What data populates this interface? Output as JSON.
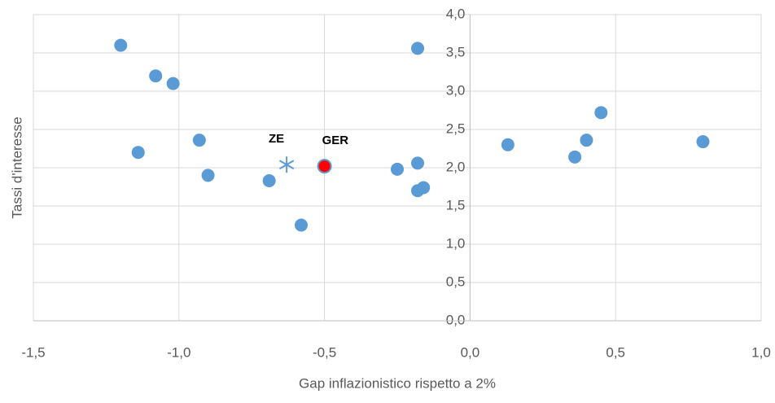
{
  "chart_data": {
    "type": "scatter",
    "xlabel": "Gap inflazionistico rispetto a 2%",
    "ylabel": "Tassi d'interesse",
    "xlim": [
      -1.5,
      1.0
    ],
    "xticks": [
      {
        "value": -1.5,
        "label": "-1,5"
      },
      {
        "value": -1.0,
        "label": "-1,0"
      },
      {
        "value": -0.5,
        "label": "-0,5"
      },
      {
        "value": 0,
        "label": "0,0"
      },
      {
        "value": 0.5,
        "label": "0,5"
      },
      {
        "value": 1.0,
        "label": "1,0"
      }
    ],
    "ylim": [
      0,
      4.0
    ],
    "yticks": [
      {
        "value": 0,
        "label": "0,0"
      },
      {
        "value": 0.5,
        "label": "0,5"
      },
      {
        "value": 1.0,
        "label": "1,0"
      },
      {
        "value": 1.5,
        "label": "1,5"
      },
      {
        "value": 2.0,
        "label": "2,0"
      },
      {
        "value": 2.5,
        "label": "2,5"
      },
      {
        "value": 3.0,
        "label": "3,0"
      },
      {
        "value": 3.5,
        "label": "3,5"
      },
      {
        "value": 4.0,
        "label": "4,0"
      }
    ],
    "grid": true,
    "series": [
      {
        "color": "#5b9bd5",
        "marker": "circle",
        "x": [
          -1.2,
          -1.08,
          -1.02,
          -1.14,
          -0.93,
          -0.9,
          -0.69,
          -0.58,
          -0.18,
          -0.25,
          -0.18,
          -0.18,
          -0.16,
          0.13,
          0.36,
          0.4,
          0.45,
          0.8
        ],
        "values": [
          3.6,
          3.2,
          3.1,
          2.2,
          2.36,
          1.9,
          1.83,
          1.25,
          3.56,
          1.98,
          2.06,
          1.7,
          1.74,
          2.3,
          2.14,
          2.36,
          2.72,
          2.34
        ]
      },
      {
        "name": "ZE",
        "color": "#5b9bd5",
        "marker": "star",
        "x": [
          -0.63
        ],
        "values": [
          2.04
        ]
      },
      {
        "name": "GER",
        "color": "#ff0000",
        "marker": "circle",
        "x": [
          -0.5
        ],
        "values": [
          2.02
        ]
      }
    ]
  }
}
